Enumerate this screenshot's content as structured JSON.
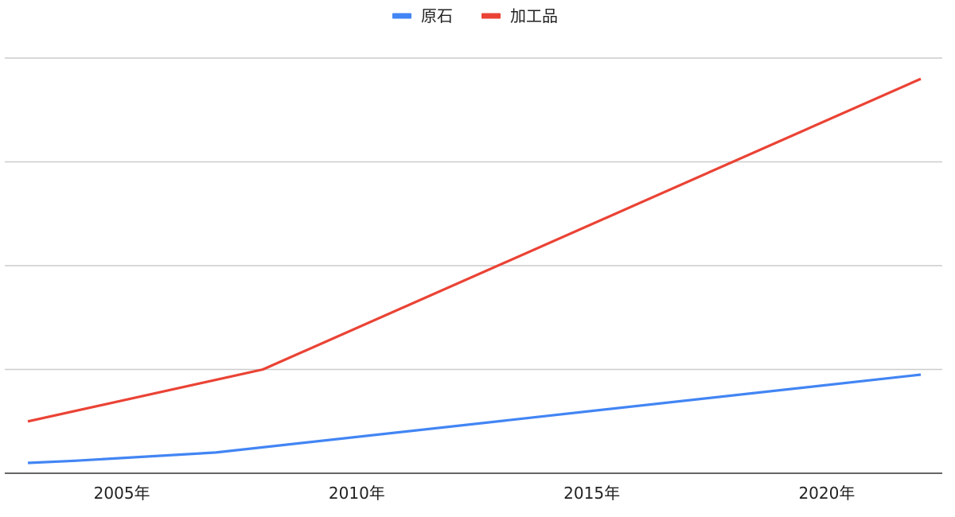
{
  "chart_data": {
    "type": "line",
    "title": "",
    "xlabel": "",
    "ylabel": "",
    "legend_position": "top",
    "grid": true,
    "x_ticks": [
      {
        "x": 2005,
        "label": "2005年"
      },
      {
        "x": 2010,
        "label": "2010年"
      },
      {
        "x": 2015,
        "label": "2015年"
      },
      {
        "x": 2020,
        "label": "2020年"
      }
    ],
    "xlim": [
      2003,
      2022
    ],
    "ylim": [
      0,
      400
    ],
    "y_gridlines": [
      100,
      200,
      300,
      400
    ],
    "series": [
      {
        "name": "原石",
        "color": "#4285f4",
        "points": [
          {
            "x": 2003,
            "y": 10
          },
          {
            "x": 2004,
            "y": 12
          },
          {
            "x": 2007,
            "y": 20
          },
          {
            "x": 2022,
            "y": 95
          }
        ]
      },
      {
        "name": "加工品",
        "color": "#ea4335",
        "points": [
          {
            "x": 2003,
            "y": 50
          },
          {
            "x": 2008,
            "y": 100
          },
          {
            "x": 2022,
            "y": 380
          }
        ]
      }
    ]
  }
}
